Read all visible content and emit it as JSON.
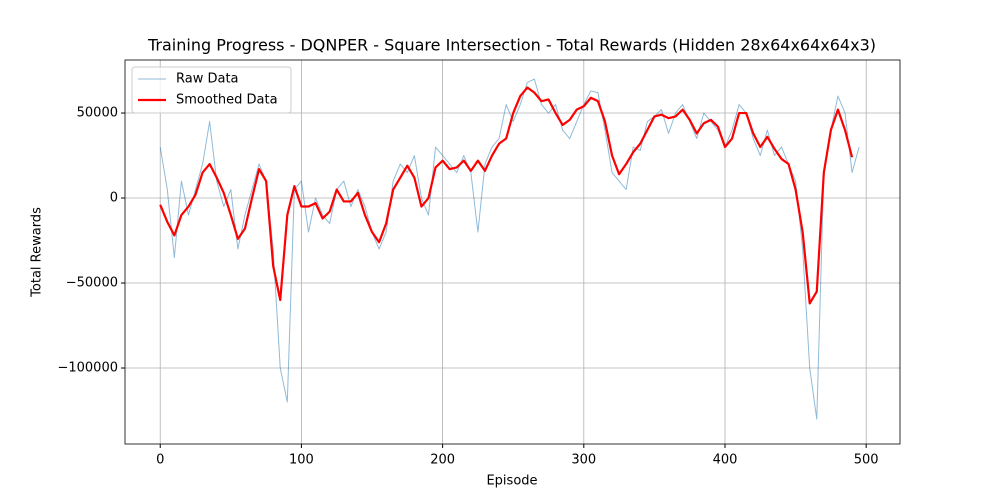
{
  "chart_data": {
    "type": "line",
    "title": "Training Progress - DQNPER - Square Intersection - Total Rewards (Hidden 28x64x64x64x3)",
    "xlabel": "Episode",
    "ylabel": "Total Rewards",
    "x": [
      0,
      5,
      10,
      15,
      20,
      25,
      30,
      35,
      40,
      45,
      50,
      55,
      60,
      65,
      70,
      75,
      80,
      85,
      90,
      95,
      100,
      105,
      110,
      115,
      120,
      125,
      130,
      135,
      140,
      145,
      150,
      155,
      160,
      165,
      170,
      175,
      180,
      185,
      190,
      195,
      200,
      205,
      210,
      215,
      220,
      225,
      230,
      235,
      240,
      245,
      250,
      255,
      260,
      265,
      270,
      275,
      280,
      285,
      290,
      295,
      300,
      305,
      310,
      315,
      320,
      325,
      330,
      335,
      340,
      345,
      350,
      355,
      360,
      365,
      370,
      375,
      380,
      385,
      390,
      395,
      400,
      405,
      410,
      415,
      420,
      425,
      430,
      435,
      440,
      445,
      450,
      455,
      460,
      465,
      470,
      475,
      480,
      485,
      490,
      495
    ],
    "series": [
      {
        "name": "Raw Data",
        "color": "#1f77b4",
        "opacity": 0.5,
        "width": 1,
        "values": [
          30000,
          5000,
          -35000,
          10000,
          -10000,
          5000,
          20000,
          45000,
          10000,
          -5000,
          5000,
          -30000,
          -10000,
          5000,
          20000,
          10000,
          -30000,
          -100000,
          -120000,
          5000,
          10000,
          -20000,
          0,
          -10000,
          -15000,
          5000,
          10000,
          -5000,
          5000,
          -5000,
          -20000,
          -30000,
          -20000,
          10000,
          20000,
          15000,
          25000,
          0,
          -10000,
          30000,
          25000,
          20000,
          15000,
          25000,
          15000,
          -20000,
          20000,
          30000,
          35000,
          55000,
          45000,
          55000,
          68000,
          70000,
          55000,
          50000,
          55000,
          40000,
          35000,
          45000,
          55000,
          63000,
          62000,
          40000,
          15000,
          10000,
          5000,
          30000,
          28000,
          45000,
          48000,
          52000,
          38000,
          50000,
          55000,
          45000,
          35000,
          50000,
          45000,
          40000,
          30000,
          40000,
          55000,
          50000,
          35000,
          25000,
          40000,
          25000,
          30000,
          20000,
          10000,
          -30000,
          -100000,
          -130000,
          15000,
          40000,
          60000,
          50000,
          15000,
          30000
        ]
      },
      {
        "name": "Smoothed Data",
        "color": "#ff0000",
        "opacity": 1,
        "width": 2.2,
        "values": [
          -4000,
          -14000,
          -22000,
          -10000,
          -5000,
          2000,
          15000,
          20000,
          12000,
          3000,
          -10000,
          -24000,
          -18000,
          0,
          17000,
          10000,
          -40000,
          -60000,
          -10000,
          7000,
          -5000,
          -5000,
          -3000,
          -12000,
          -8000,
          5000,
          -2000,
          -2000,
          3000,
          -10000,
          -20000,
          -26000,
          -15000,
          5000,
          12000,
          19000,
          12000,
          -5000,
          0,
          18000,
          22000,
          17000,
          18000,
          22000,
          16000,
          22000,
          16000,
          25000,
          32000,
          35000,
          50000,
          60000,
          65000,
          62000,
          57000,
          58000,
          50000,
          43000,
          46000,
          52000,
          54000,
          59000,
          57000,
          45000,
          25000,
          14000,
          20000,
          27000,
          32000,
          40000,
          48000,
          49000,
          47000,
          48000,
          52000,
          46000,
          38000,
          44000,
          46000,
          42000,
          30000,
          35000,
          50000,
          50000,
          38000,
          30000,
          36000,
          29000,
          23000,
          20000,
          5000,
          -20000,
          -62000,
          -55000,
          15000,
          40000,
          52000,
          40000,
          24000,
          null
        ]
      }
    ],
    "xlim": [
      -24.95,
      523.95
    ],
    "ylim": [
      -144700,
      81200
    ],
    "xticks": [
      0,
      100,
      200,
      300,
      400,
      500
    ],
    "yticks": [
      {
        "value": -100000,
        "label": "−100000"
      },
      {
        "value": -50000,
        "label": "−50000"
      },
      0,
      50000
    ],
    "grid": true,
    "legend": "upper-left"
  }
}
